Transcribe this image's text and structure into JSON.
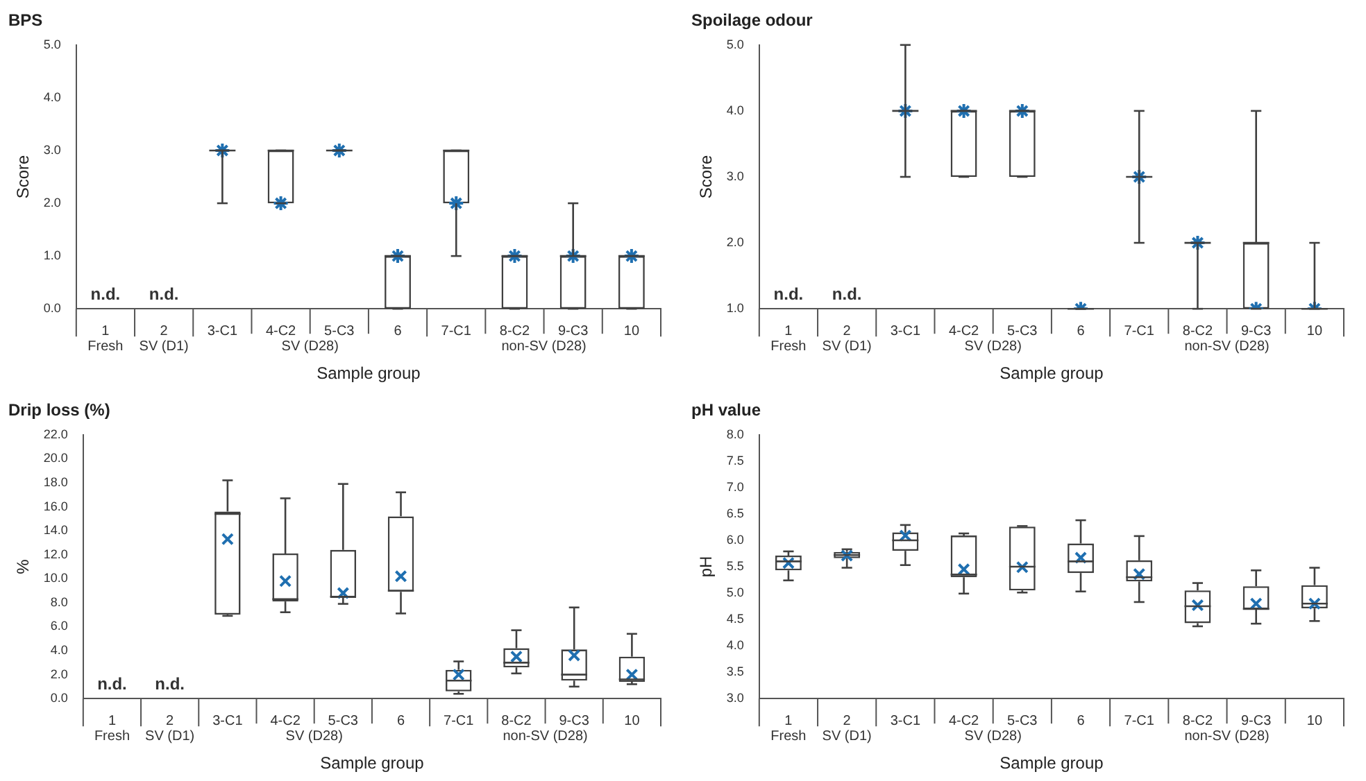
{
  "chart_data": [
    {
      "type": "box",
      "title": "BPS",
      "xlabel": "Sample group",
      "ylabel": "Score",
      "color": "#404040",
      "marker": "star",
      "categories": [
        "1",
        "2",
        "3-C1",
        "4-C2",
        "5-C3",
        "6",
        "7-C1",
        "8-C2",
        "9-C3",
        "10"
      ],
      "boxes": [
        null,
        null,
        {
          "low": 2,
          "q1": 3,
          "median": 3,
          "q3": 3,
          "high": 3,
          "mean": 3
        },
        {
          "low": 2,
          "q1": 2,
          "median": 3,
          "q3": 3,
          "high": 3,
          "mean": 2
        },
        {
          "low": 3,
          "q1": 3,
          "median": 3,
          "q3": 3,
          "high": 3,
          "mean": 3
        },
        {
          "low": 0,
          "q1": 0,
          "median": 1,
          "q3": 1,
          "high": 1,
          "mean": 1
        },
        {
          "low": 1,
          "q1": 2,
          "median": 3,
          "q3": 3,
          "high": 3,
          "mean": 2
        },
        {
          "low": 0,
          "q1": 0,
          "median": 1,
          "q3": 1,
          "high": 1,
          "mean": 1
        },
        {
          "low": 0,
          "q1": 0,
          "median": 1,
          "q3": 1,
          "high": 2,
          "mean": 1
        },
        {
          "low": 0,
          "q1": 0,
          "median": 1,
          "q3": 1,
          "high": 1,
          "mean": 1
        }
      ],
      "ylim": [
        0,
        5
      ],
      "yticks": [
        {
          "value": 0,
          "label": "0.0"
        },
        {
          "value": 1,
          "label": "1.0"
        },
        {
          "value": 2,
          "label": "2.0"
        },
        {
          "value": 3,
          "label": "3.0"
        },
        {
          "value": 4,
          "label": "4.0"
        },
        {
          "value": 5,
          "label": "5.0"
        }
      ],
      "annotations": [
        "n.d.",
        "n.d.",
        "Fresh",
        "SV (D1)",
        "SV (D28)",
        "non-SV (D28)"
      ]
    },
    {
      "type": "box",
      "title": "Spoilage odour",
      "xlabel": "Sample group",
      "ylabel": "Score",
      "color": "#404040",
      "marker": "star",
      "categories": [
        "1",
        "2",
        "3-C1",
        "4-C2",
        "5-C3",
        "6",
        "7-C1",
        "8-C2",
        "9-C3",
        "10"
      ],
      "boxes": [
        null,
        null,
        {
          "low": 3,
          "q1": 4,
          "median": 4,
          "q3": 4,
          "high": 5,
          "mean": 4
        },
        {
          "low": 3,
          "q1": 3,
          "median": 4,
          "q3": 4,
          "high": 4,
          "mean": 4
        },
        {
          "low": 3,
          "q1": 3,
          "median": 4,
          "q3": 4,
          "high": 4,
          "mean": 4
        },
        {
          "low": 1,
          "q1": 1,
          "median": 1,
          "q3": 1,
          "high": 1,
          "mean": 1
        },
        {
          "low": 2,
          "q1": 3,
          "median": 3,
          "q3": 3,
          "high": 4,
          "mean": 3
        },
        {
          "low": 1,
          "q1": 2,
          "median": 2,
          "q3": 2,
          "high": 2,
          "mean": 2
        },
        {
          "low": 1,
          "q1": 1,
          "median": 2,
          "q3": 2,
          "high": 4,
          "mean": 1
        },
        {
          "low": 1,
          "q1": 1,
          "median": 1,
          "q3": 1,
          "high": 2,
          "mean": 1
        }
      ],
      "ylim": [
        1,
        5
      ],
      "yticks": [
        {
          "value": 1,
          "label": "1.0"
        },
        {
          "value": 2,
          "label": "2.0"
        },
        {
          "value": 3,
          "label": "3.0"
        },
        {
          "value": 4,
          "label": "4.0"
        },
        {
          "value": 5,
          "label": "5.0"
        }
      ],
      "annotations": [
        "n.d.",
        "n.d.",
        "Fresh",
        "SV (D1)",
        "SV (D28)",
        "non-SV (D28)"
      ]
    },
    {
      "type": "box",
      "title": "Drip loss (%)",
      "xlabel": "Sample group",
      "ylabel": "%",
      "color": "#404040",
      "marker": "cross",
      "categories": [
        "1",
        "2",
        "3-C1",
        "4-C2",
        "5-C3",
        "6",
        "7-C1",
        "8-C2",
        "9-C3",
        "10"
      ],
      "boxes": [
        null,
        null,
        {
          "low": 6.9,
          "q1": 7.0,
          "median": 15.4,
          "q3": 15.6,
          "high": 18.2,
          "mean": 13.3
        },
        {
          "low": 7.2,
          "q1": 8.1,
          "median": 8.3,
          "q3": 12.1,
          "high": 16.7,
          "mean": 9.8
        },
        {
          "low": 7.9,
          "q1": 8.4,
          "median": 8.5,
          "q3": 12.4,
          "high": 17.9,
          "mean": 8.8
        },
        {
          "low": 7.1,
          "q1": 8.9,
          "median": 9.0,
          "q3": 15.2,
          "high": 17.2,
          "mean": 10.2
        },
        {
          "low": 0.4,
          "q1": 0.6,
          "median": 1.5,
          "q3": 2.4,
          "high": 3.1,
          "mean": 2.0
        },
        {
          "low": 2.1,
          "q1": 2.6,
          "median": 3.0,
          "q3": 4.2,
          "high": 5.7,
          "mean": 3.5
        },
        {
          "low": 1.0,
          "q1": 1.5,
          "median": 2.0,
          "q3": 4.1,
          "high": 7.6,
          "mean": 3.6
        },
        {
          "low": 1.2,
          "q1": 1.4,
          "median": 1.6,
          "q3": 3.5,
          "high": 5.4,
          "mean": 2.0
        }
      ],
      "ylim": [
        0,
        22
      ],
      "yticks": [
        {
          "value": 0,
          "label": "0.0"
        },
        {
          "value": 2,
          "label": "2.0"
        },
        {
          "value": 4,
          "label": "4.0"
        },
        {
          "value": 6,
          "label": "6.0"
        },
        {
          "value": 8,
          "label": "8.0"
        },
        {
          "value": 10,
          "label": "10.0"
        },
        {
          "value": 12,
          "label": "12.0"
        },
        {
          "value": 14,
          "label": "14.0"
        },
        {
          "value": 16,
          "label": "16.0"
        },
        {
          "value": 18,
          "label": "18.0"
        },
        {
          "value": 20,
          "label": "20.0"
        },
        {
          "value": 22,
          "label": "22.0"
        }
      ],
      "annotations": [
        "n.d.",
        "n.d.",
        "Fresh",
        "SV (D1)",
        "SV (D28)",
        "non-SV (D28)"
      ]
    },
    {
      "type": "box",
      "title": "pH value",
      "xlabel": "Sample group",
      "ylabel": "pH",
      "color": "#404040",
      "marker": "cross",
      "categories": [
        "1",
        "2",
        "3-C1",
        "4-C2",
        "5-C3",
        "6",
        "7-C1",
        "8-C2",
        "9-C3",
        "10"
      ],
      "boxes": [
        {
          "low": 5.24,
          "q1": 5.43,
          "median": 5.6,
          "q3": 5.71,
          "high": 5.79,
          "mean": 5.57
        },
        {
          "low": 5.48,
          "q1": 5.66,
          "median": 5.72,
          "q3": 5.78,
          "high": 5.83,
          "mean": 5.71
        },
        {
          "low": 5.53,
          "q1": 5.8,
          "median": 6.0,
          "q3": 6.15,
          "high": 6.29,
          "mean": 6.09
        },
        {
          "low": 4.99,
          "q1": 5.3,
          "median": 5.35,
          "q3": 6.09,
          "high": 6.13,
          "mean": 5.45
        },
        {
          "low": 5.01,
          "q1": 5.05,
          "median": 5.5,
          "q3": 6.26,
          "high": 6.27,
          "mean": 5.49
        },
        {
          "low": 5.03,
          "q1": 5.38,
          "median": 5.6,
          "q3": 5.94,
          "high": 6.38,
          "mean": 5.67
        },
        {
          "low": 4.83,
          "q1": 5.22,
          "median": 5.3,
          "q3": 5.62,
          "high": 6.08,
          "mean": 5.36
        },
        {
          "low": 4.37,
          "q1": 4.43,
          "median": 4.75,
          "q3": 5.05,
          "high": 5.19,
          "mean": 4.77
        },
        {
          "low": 4.42,
          "q1": 4.69,
          "median": 4.7,
          "q3": 5.13,
          "high": 5.43,
          "mean": 4.8
        },
        {
          "low": 4.47,
          "q1": 4.71,
          "median": 4.8,
          "q3": 5.15,
          "high": 5.48,
          "mean": 4.8
        }
      ],
      "ylim": [
        3,
        8
      ],
      "yticks": [
        {
          "value": 3,
          "label": "3.0"
        },
        {
          "value": 3.5,
          "label": "3.5"
        },
        {
          "value": 4,
          "label": "4.0"
        },
        {
          "value": 4.5,
          "label": "4.5"
        },
        {
          "value": 5,
          "label": "5.0"
        },
        {
          "value": 5.5,
          "label": "5.5"
        },
        {
          "value": 6,
          "label": "6.0"
        },
        {
          "value": 6.5,
          "label": "6.5"
        },
        {
          "value": 7,
          "label": "7.0"
        },
        {
          "value": 7.5,
          "label": "7.5"
        },
        {
          "value": 8,
          "label": "8.0"
        }
      ],
      "annotations": [
        "Fresh",
        "SV (D1)",
        "SV (D28)",
        "non-SV (D28)"
      ]
    }
  ]
}
